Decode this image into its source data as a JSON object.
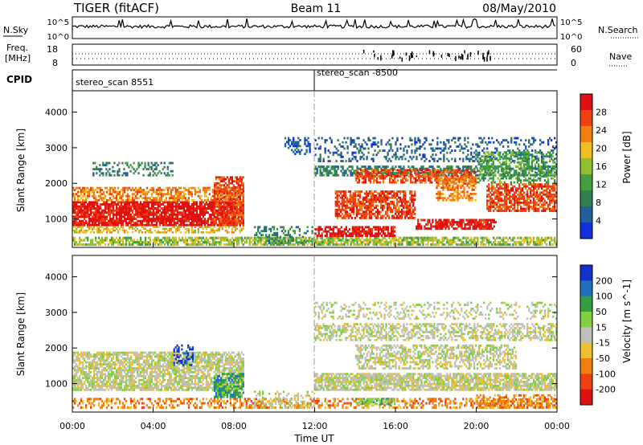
{
  "header": {
    "radar": "TIGER (fitACF)",
    "beam": "Beam 11",
    "date": "08/May/2010"
  },
  "strips": {
    "nsky_label": "N.Sky",
    "nsky_ticks": [
      "10^5",
      "10^0"
    ],
    "nsearch_label": "N.Search",
    "freq_label_1": "Freq.",
    "freq_label_2": "[MHz]",
    "freq_ticks": [
      "18",
      "8"
    ],
    "nave_ticks": [
      "60",
      "0"
    ],
    "nave_label": "Nave",
    "cpid_label": "CPID",
    "cpid_segments": [
      {
        "label": "stereo_scan 8551",
        "start_hour": 0
      },
      {
        "label": "stereo_scan -8500",
        "start_hour": 12
      }
    ]
  },
  "colors": {
    "power": [
      "#1030e0",
      "#2060a0",
      "#308050",
      "#40a040",
      "#90c030",
      "#f0c020",
      "#f08010",
      "#f04010",
      "#e01010"
    ],
    "velocity": [
      "#1530d0",
      "#2070c0",
      "#30a040",
      "#80d040",
      "#c0c0b8",
      "#f0c030",
      "#f08010",
      "#f04010",
      "#e01010"
    ]
  },
  "chart_data": [
    {
      "type": "heatmap",
      "panel": "power",
      "ylabel": "Slant Range [km]",
      "ylim": [
        200,
        4600
      ],
      "yticks": [
        1000,
        2000,
        3000,
        4000
      ],
      "xlim_hours": [
        0,
        24
      ],
      "colorbar_label": "Power [dB]",
      "colorbar_ticks": [
        "28",
        "24",
        "20",
        "16",
        "12",
        "8",
        "4"
      ],
      "colorbar_range": [
        0,
        32
      ]
    },
    {
      "type": "heatmap",
      "panel": "velocity",
      "ylabel": "Slant Range [km]",
      "ylim": [
        200,
        4600
      ],
      "yticks": [
        1000,
        2000,
        3000,
        4000
      ],
      "xlim_hours": [
        0,
        24
      ],
      "xticks": [
        "00:00",
        "04:00",
        "08:00",
        "12:00",
        "16:00",
        "20:00",
        "00:00"
      ],
      "xlabel": "Time UT",
      "colorbar_label": "Velocity [m s^-1]",
      "colorbar_ticks": [
        "200",
        "100",
        "50",
        "15",
        "-15",
        "-50",
        "-100",
        "-200"
      ]
    }
  ]
}
